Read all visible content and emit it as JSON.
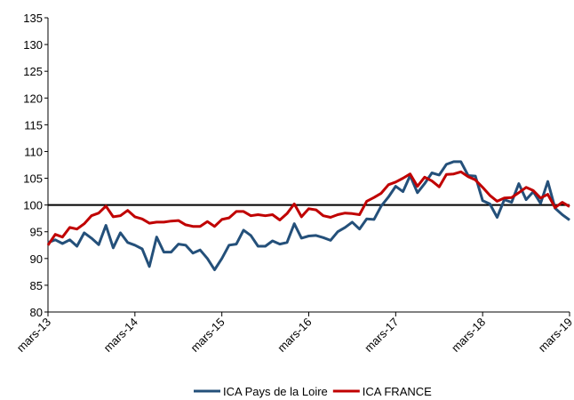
{
  "chart_data": {
    "type": "line",
    "categories": [
      "mars-13",
      null,
      null,
      null,
      null,
      null,
      null,
      null,
      null,
      null,
      null,
      null,
      "mars-14",
      null,
      null,
      null,
      null,
      null,
      null,
      null,
      null,
      null,
      null,
      null,
      "mars-15",
      null,
      null,
      null,
      null,
      null,
      null,
      null,
      null,
      null,
      null,
      null,
      "mars-16",
      null,
      null,
      null,
      null,
      null,
      null,
      null,
      null,
      null,
      null,
      null,
      "mars-17",
      null,
      null,
      null,
      null,
      null,
      null,
      null,
      null,
      null,
      null,
      null,
      "mars-18",
      null,
      null,
      null,
      null,
      null,
      null,
      null,
      null,
      null,
      null,
      null,
      "mars-19"
    ],
    "series": [
      {
        "name": "ICA Pays de la Loire",
        "color": "#24507a",
        "values": [
          93,
          93.5,
          92.8,
          93.5,
          92.3,
          94.8,
          93.8,
          92.6,
          96.2,
          92,
          94.8,
          93,
          92.5,
          91.8,
          88.5,
          94,
          91.2,
          91.2,
          92.7,
          92.5,
          91,
          91.6,
          90,
          87.9,
          90,
          92.5,
          92.7,
          95.3,
          94.3,
          92.3,
          92.3,
          93.3,
          92.7,
          93,
          96.5,
          93.8,
          94.2,
          94.3,
          93.9,
          93.4,
          95,
          95.8,
          96.8,
          95.5,
          97.4,
          97.3,
          99.8,
          101.5,
          103.5,
          102.5,
          105.5,
          102.3,
          104,
          106,
          105.6,
          107.6,
          108.1,
          108.1,
          105.5,
          105.4,
          100.8,
          100.2,
          97.7,
          101,
          100.5,
          104,
          101,
          102.5,
          100.3,
          104.4,
          99.4,
          98.2,
          97.2
        ]
      },
      {
        "name": "ICA FRANCE",
        "color": "#c00000",
        "values": [
          92.5,
          94.5,
          94,
          95.8,
          95.5,
          96.5,
          98,
          98.5,
          99.8,
          97.8,
          98,
          99,
          97.8,
          97.4,
          96.6,
          96.8,
          96.8,
          97,
          97.1,
          96.3,
          96,
          96,
          96.9,
          96,
          97.3,
          97.6,
          98.8,
          98.8,
          98,
          98.2,
          98,
          98.2,
          97.2,
          98.4,
          100.2,
          97.8,
          99.3,
          99.1,
          98,
          97.7,
          98.2,
          98.5,
          98.4,
          98.2,
          100.7,
          101.4,
          102.2,
          103.8,
          104.3,
          105,
          105.8,
          103.5,
          105.2,
          104.5,
          103.4,
          105.7,
          105.8,
          106.2,
          105.3,
          104.7,
          103.3,
          101.8,
          100.7,
          101.3,
          101.4,
          102.3,
          103.3,
          102.7,
          101.3,
          102,
          99.5,
          100.5,
          99.7
        ]
      }
    ],
    "reference_line": 100,
    "ylim": [
      80,
      135
    ],
    "yticks": [
      80,
      85,
      90,
      95,
      100,
      105,
      110,
      115,
      120,
      125,
      130,
      135
    ],
    "legend": "bottom"
  }
}
